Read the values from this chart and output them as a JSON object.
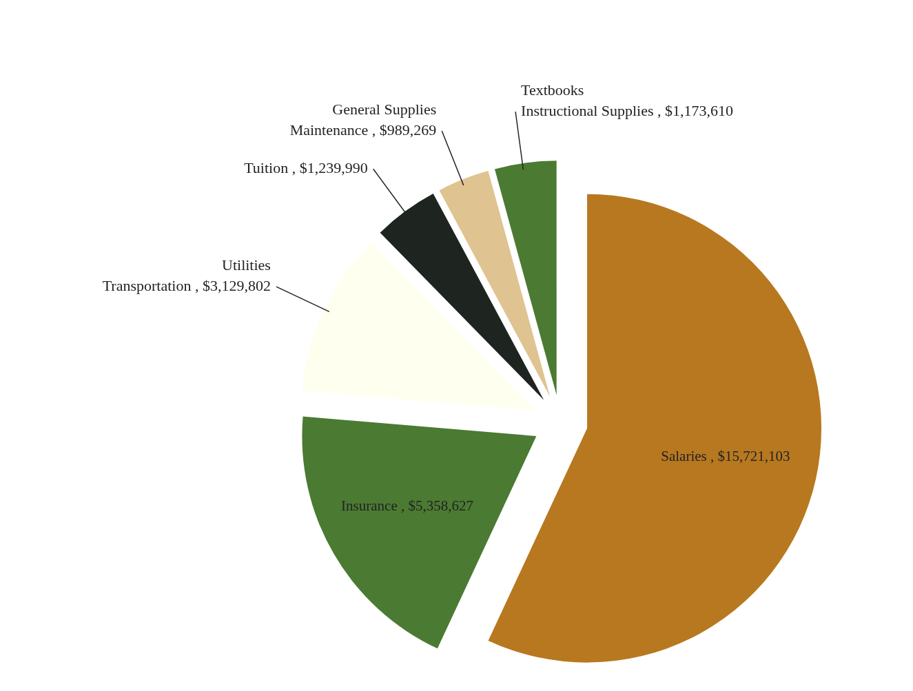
{
  "chart_data": {
    "type": "pie",
    "categories": [
      "Salaries",
      "Insurance",
      "Utilities\nTransportation",
      "Tuition",
      "General Supplies\nMaintenance",
      "Textbooks\nInstructional Supplies"
    ],
    "values": [
      15721103,
      5358627,
      3129802,
      1239990,
      989269,
      1173610
    ],
    "value_labels": [
      "$15,721,103",
      "$5,358,627",
      "$3,129,802",
      "$1,239,990",
      "$989,269",
      "$1,173,610"
    ],
    "colors": [
      "#b87820",
      "#4b7a32",
      "#fffff0",
      "#1e2420",
      "#dfc391",
      "#4b7a32"
    ],
    "legend": false
  }
}
